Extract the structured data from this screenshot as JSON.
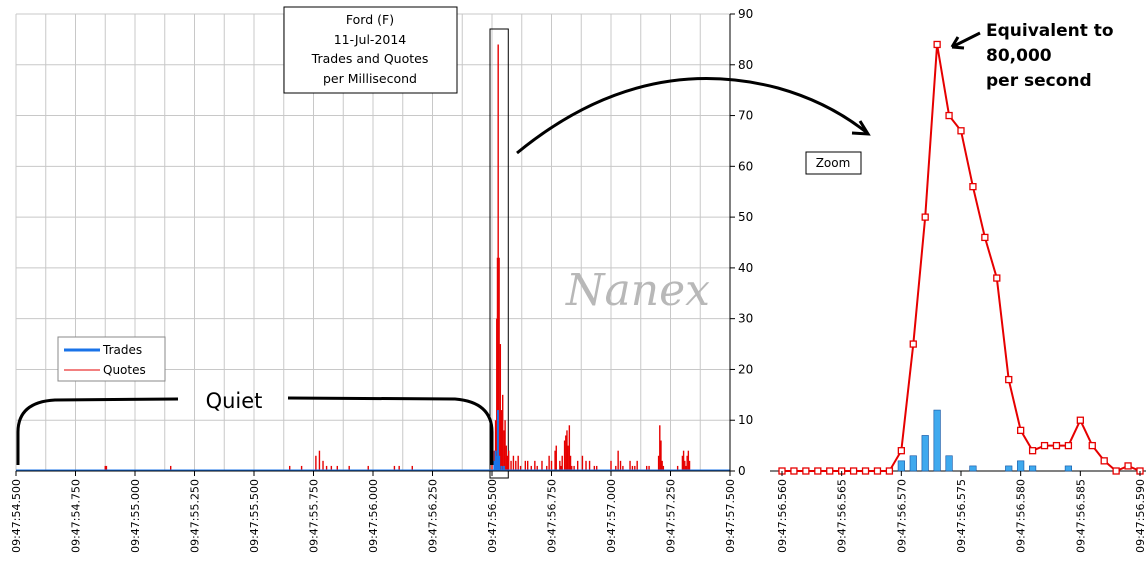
{
  "colors": {
    "trades": "#1a73e8",
    "trade_bar": "#3fa9ee",
    "quotes": "#e60000",
    "grid": "#c8c8c8"
  },
  "title_box": {
    "lines": [
      "Ford (F)",
      "11-Jul-2014",
      "Trades and Quotes",
      "per Millisecond"
    ]
  },
  "watermark": "Nanex",
  "legend": {
    "trades_label": "Trades",
    "quotes_label": "Quotes",
    "placement": "middle-left"
  },
  "annotations": {
    "quiet": "Quiet",
    "zoom": "Zoom",
    "callout_lines": [
      "Equivalent to",
      "80,000",
      "per second"
    ]
  },
  "chart_data": [
    {
      "id": "overview",
      "type": "bar",
      "xlabel": "",
      "ylabel": "",
      "x_ticks": [
        "09:47:54.500",
        "09:47:54.750",
        "09:47:55.000",
        "09:47:55.250",
        "09:47:55.500",
        "09:47:55.750",
        "09:47:56.000",
        "09:47:56.250",
        "09:47:56.500",
        "09:47:56.750",
        "09:47:57.000",
        "09:47:57.250",
        "09:47:57.500"
      ],
      "y_ticks": [
        0,
        10,
        20,
        30,
        40,
        50,
        60,
        70,
        80,
        90
      ],
      "xlim_ms": [
        0,
        3000
      ],
      "ylim": [
        0,
        90
      ],
      "grid": true,
      "series": [
        {
          "name": "Quotes",
          "points": [
            [
              375,
              1
            ],
            [
              380,
              1
            ],
            [
              650,
              1
            ],
            [
              1150,
              1
            ],
            [
              1200,
              1
            ],
            [
              1260,
              3
            ],
            [
              1275,
              4
            ],
            [
              1290,
              2
            ],
            [
              1305,
              1
            ],
            [
              1325,
              1
            ],
            [
              1350,
              1
            ],
            [
              1400,
              1
            ],
            [
              1480,
              1
            ],
            [
              1590,
              1
            ],
            [
              1610,
              1
            ],
            [
              1665,
              1
            ],
            [
              2000,
              2
            ],
            [
              2010,
              4
            ],
            [
              2015,
              10
            ],
            [
              2020,
              30
            ],
            [
              2023,
              42
            ],
            [
              2026,
              84
            ],
            [
              2030,
              42
            ],
            [
              2035,
              25
            ],
            [
              2040,
              12
            ],
            [
              2045,
              15
            ],
            [
              2050,
              8
            ],
            [
              2055,
              10
            ],
            [
              2060,
              5
            ],
            [
              2065,
              3
            ],
            [
              2070,
              4
            ],
            [
              2080,
              2
            ],
            [
              2090,
              3
            ],
            [
              2100,
              2
            ],
            [
              2110,
              3
            ],
            [
              2120,
              1
            ],
            [
              2140,
              2
            ],
            [
              2150,
              2
            ],
            [
              2165,
              1
            ],
            [
              2180,
              2
            ],
            [
              2190,
              1
            ],
            [
              2210,
              2
            ],
            [
              2230,
              1
            ],
            [
              2240,
              3
            ],
            [
              2250,
              2
            ],
            [
              2265,
              4
            ],
            [
              2270,
              5
            ],
            [
              2285,
              2
            ],
            [
              2290,
              1
            ],
            [
              2295,
              3
            ],
            [
              2305,
              6
            ],
            [
              2310,
              7
            ],
            [
              2315,
              8
            ],
            [
              2320,
              5
            ],
            [
              2325,
              9
            ],
            [
              2330,
              3
            ],
            [
              2335,
              1
            ],
            [
              2345,
              1
            ],
            [
              2360,
              2
            ],
            [
              2380,
              3
            ],
            [
              2395,
              2
            ],
            [
              2410,
              2
            ],
            [
              2430,
              1
            ],
            [
              2440,
              1
            ],
            [
              2500,
              2
            ],
            [
              2520,
              1
            ],
            [
              2530,
              4
            ],
            [
              2540,
              2
            ],
            [
              2550,
              1
            ],
            [
              2580,
              2
            ],
            [
              2590,
              1
            ],
            [
              2600,
              1
            ],
            [
              2610,
              2
            ],
            [
              2650,
              1
            ],
            [
              2660,
              1
            ],
            [
              2700,
              3
            ],
            [
              2705,
              9
            ],
            [
              2710,
              6
            ],
            [
              2715,
              2
            ],
            [
              2720,
              1
            ],
            [
              2780,
              1
            ],
            [
              2800,
              3
            ],
            [
              2805,
              4
            ],
            [
              2810,
              2
            ],
            [
              2815,
              1
            ],
            [
              2820,
              3
            ],
            [
              2825,
              4
            ],
            [
              2830,
              2
            ]
          ]
        },
        {
          "name": "Trades",
          "points": [
            [
              2010,
              2
            ],
            [
              2015,
              4
            ],
            [
              2020,
              3
            ],
            [
              2025,
              12
            ],
            [
              2030,
              3
            ],
            [
              2040,
              1
            ],
            [
              2050,
              1
            ]
          ]
        }
      ],
      "highlight_box_ms": [
        2000,
        2060
      ]
    },
    {
      "id": "zoom",
      "type": "line",
      "xlabel": "",
      "ylabel": "",
      "x_ticks": [
        "09:47:56.560",
        "09:47:56.565",
        "09:47:56.570",
        "09:47:56.575",
        "09:47:56.580",
        "09:47:56.585",
        "09:47:56.590"
      ],
      "y_ticks": [
        0,
        10,
        20,
        30,
        40,
        50,
        60,
        70,
        80,
        90
      ],
      "xlim_ms": [
        0,
        30
      ],
      "ylim": [
        0,
        90
      ],
      "grid": false,
      "series": [
        {
          "name": "Quotes",
          "type": "line",
          "values": [
            0,
            0,
            0,
            0,
            0,
            0,
            0,
            0,
            0,
            0,
            4,
            25,
            50,
            84,
            70,
            67,
            56,
            46,
            38,
            18,
            8,
            4,
            5,
            5,
            5,
            10,
            5,
            2,
            0,
            1,
            0
          ]
        },
        {
          "name": "Trades",
          "type": "bar",
          "values": [
            0,
            0,
            0,
            0,
            0,
            0,
            0,
            0,
            0,
            0,
            2,
            3,
            7,
            12,
            3,
            0,
            1,
            0,
            0,
            1,
            2,
            1,
            0,
            0,
            1,
            0,
            0,
            0,
            0,
            0,
            0
          ]
        }
      ]
    }
  ]
}
